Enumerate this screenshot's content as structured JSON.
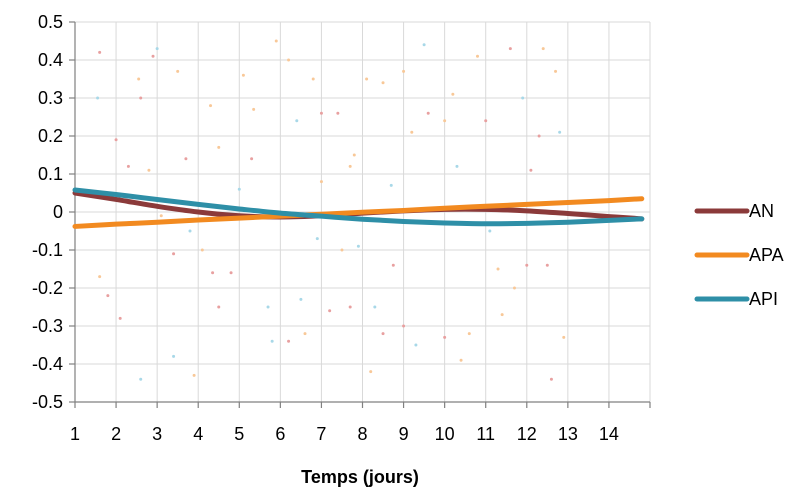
{
  "chart_data": {
    "type": "line",
    "title": "",
    "xlabel": "Temps (jours)",
    "ylabel": "",
    "xlim": [
      1,
      15
    ],
    "ylim": [
      -0.5,
      0.5
    ],
    "x_ticks": [
      1,
      2,
      3,
      4,
      5,
      6,
      7,
      8,
      9,
      10,
      11,
      12,
      13,
      14
    ],
    "y_ticks": [
      0.5,
      0.4,
      0.3,
      0.2,
      0.1,
      0,
      -0.1,
      -0.2,
      -0.3,
      -0.4,
      -0.5
    ],
    "y_tick_labels": [
      "0.5",
      "0.4",
      "0.3",
      "0.2",
      "0.1",
      "0",
      "-0.1",
      "-0.2",
      "-0.3",
      "-0.4",
      "-0.5"
    ],
    "grid": true,
    "legend_position": "right",
    "series": [
      {
        "name": "AN",
        "color": "#8B3A3A",
        "x": [
          1,
          2,
          3,
          4,
          5,
          6,
          7,
          8,
          9,
          10,
          11,
          12,
          13,
          14,
          14.8
        ],
        "values": [
          0.05,
          0.033,
          0.015,
          0.0,
          -0.01,
          -0.013,
          -0.01,
          -0.003,
          0.003,
          0.007,
          0.007,
          0.003,
          -0.004,
          -0.012,
          -0.018
        ]
      },
      {
        "name": "APA",
        "color": "#F28A20",
        "x": [
          1,
          2,
          3,
          4,
          5,
          6,
          7,
          8,
          9,
          10,
          11,
          12,
          13,
          14,
          14.8
        ],
        "values": [
          -0.038,
          -0.032,
          -0.027,
          -0.021,
          -0.016,
          -0.011,
          -0.006,
          -0.0005,
          0.004,
          0.01,
          0.015,
          0.02,
          0.025,
          0.03,
          0.035
        ]
      },
      {
        "name": "API",
        "color": "#2E8FA7",
        "x": [
          1,
          2,
          3,
          4,
          5,
          6,
          7,
          8,
          9,
          10,
          11,
          12,
          13,
          14,
          14.8
        ],
        "values": [
          0.058,
          0.046,
          0.033,
          0.02,
          0.008,
          -0.003,
          -0.011,
          -0.019,
          -0.025,
          -0.029,
          -0.031,
          -0.03,
          -0.027,
          -0.022,
          -0.018
        ]
      }
    ],
    "background_dots": [
      {
        "x": 1.6,
        "y": 0.42,
        "c": "#e8a0a0"
      },
      {
        "x": 1.55,
        "y": 0.3,
        "c": "#a8d8e8"
      },
      {
        "x": 1.8,
        "y": -0.22,
        "c": "#e8a0a0"
      },
      {
        "x": 1.6,
        "y": -0.17,
        "c": "#f8c898"
      },
      {
        "x": 2.0,
        "y": 0.19,
        "c": "#e8a0a0"
      },
      {
        "x": 2.1,
        "y": -0.28,
        "c": "#e8a0a0"
      },
      {
        "x": 2.3,
        "y": 0.12,
        "c": "#e8a0a0"
      },
      {
        "x": 2.6,
        "y": 0.3,
        "c": "#e8a0a0"
      },
      {
        "x": 2.55,
        "y": 0.35,
        "c": "#f8c898"
      },
      {
        "x": 2.6,
        "y": -0.44,
        "c": "#a8d8e8"
      },
      {
        "x": 2.8,
        "y": 0.11,
        "c": "#f8c898"
      },
      {
        "x": 2.9,
        "y": 0.41,
        "c": "#e8a0a0"
      },
      {
        "x": 3.0,
        "y": 0.43,
        "c": "#a8d8e8"
      },
      {
        "x": 3.1,
        "y": -0.01,
        "c": "#f8c898"
      },
      {
        "x": 3.4,
        "y": -0.11,
        "c": "#e8a0a0"
      },
      {
        "x": 3.5,
        "y": 0.37,
        "c": "#f8c898"
      },
      {
        "x": 3.4,
        "y": -0.38,
        "c": "#a8d8e8"
      },
      {
        "x": 3.7,
        "y": 0.14,
        "c": "#e8a0a0"
      },
      {
        "x": 3.8,
        "y": -0.05,
        "c": "#a8d8e8"
      },
      {
        "x": 3.9,
        "y": -0.43,
        "c": "#f8c898"
      },
      {
        "x": 4.1,
        "y": -0.1,
        "c": "#f8c898"
      },
      {
        "x": 4.3,
        "y": 0.28,
        "c": "#f8c898"
      },
      {
        "x": 4.35,
        "y": -0.16,
        "c": "#e8a0a0"
      },
      {
        "x": 4.5,
        "y": 0.17,
        "c": "#f8c898"
      },
      {
        "x": 4.5,
        "y": -0.25,
        "c": "#e8a0a0"
      },
      {
        "x": 4.8,
        "y": -0.16,
        "c": "#e8a0a0"
      },
      {
        "x": 5.0,
        "y": 0.06,
        "c": "#a8d8e8"
      },
      {
        "x": 5.1,
        "y": 0.36,
        "c": "#f8c898"
      },
      {
        "x": 5.3,
        "y": 0.14,
        "c": "#e8a0a0"
      },
      {
        "x": 5.35,
        "y": 0.27,
        "c": "#f8c898"
      },
      {
        "x": 5.7,
        "y": -0.25,
        "c": "#a8d8e8"
      },
      {
        "x": 5.9,
        "y": 0.45,
        "c": "#f8c898"
      },
      {
        "x": 5.8,
        "y": -0.34,
        "c": "#a8d8e8"
      },
      {
        "x": 6.2,
        "y": 0.4,
        "c": "#f8c898"
      },
      {
        "x": 6.2,
        "y": -0.34,
        "c": "#e8a0a0"
      },
      {
        "x": 6.4,
        "y": 0.24,
        "c": "#a8d8e8"
      },
      {
        "x": 6.5,
        "y": -0.23,
        "c": "#a8d8e8"
      },
      {
        "x": 6.6,
        "y": -0.32,
        "c": "#f8c898"
      },
      {
        "x": 6.8,
        "y": 0.35,
        "c": "#f8c898"
      },
      {
        "x": 6.9,
        "y": -0.07,
        "c": "#a8d8e8"
      },
      {
        "x": 7.0,
        "y": 0.26,
        "c": "#e8a0a0"
      },
      {
        "x": 7.0,
        "y": 0.08,
        "c": "#f8c898"
      },
      {
        "x": 7.2,
        "y": -0.26,
        "c": "#e8a0a0"
      },
      {
        "x": 7.4,
        "y": 0.26,
        "c": "#e8a0a0"
      },
      {
        "x": 7.5,
        "y": -0.1,
        "c": "#f8c898"
      },
      {
        "x": 7.7,
        "y": 0.12,
        "c": "#f8c898"
      },
      {
        "x": 7.7,
        "y": -0.25,
        "c": "#e8a0a0"
      },
      {
        "x": 7.8,
        "y": 0.15,
        "c": "#f8c898"
      },
      {
        "x": 7.9,
        "y": -0.09,
        "c": "#a8d8e8"
      },
      {
        "x": 8.1,
        "y": 0.35,
        "c": "#f8c898"
      },
      {
        "x": 8.2,
        "y": -0.42,
        "c": "#f8c898"
      },
      {
        "x": 8.3,
        "y": -0.25,
        "c": "#a8d8e8"
      },
      {
        "x": 8.5,
        "y": 0.34,
        "c": "#f8c898"
      },
      {
        "x": 8.5,
        "y": -0.32,
        "c": "#e8a0a0"
      },
      {
        "x": 8.7,
        "y": 0.07,
        "c": "#a8d8e8"
      },
      {
        "x": 8.75,
        "y": -0.14,
        "c": "#e8a0a0"
      },
      {
        "x": 9.0,
        "y": 0.37,
        "c": "#f8c898"
      },
      {
        "x": 9.0,
        "y": -0.3,
        "c": "#e8a0a0"
      },
      {
        "x": 9.2,
        "y": 0.21,
        "c": "#f8c898"
      },
      {
        "x": 9.3,
        "y": -0.35,
        "c": "#a8d8e8"
      },
      {
        "x": 9.5,
        "y": 0.44,
        "c": "#a8d8e8"
      },
      {
        "x": 9.6,
        "y": 0.26,
        "c": "#e8a0a0"
      },
      {
        "x": 10.0,
        "y": 0.24,
        "c": "#f8c898"
      },
      {
        "x": 10.0,
        "y": -0.33,
        "c": "#e8a0a0"
      },
      {
        "x": 10.2,
        "y": 0.31,
        "c": "#f8c898"
      },
      {
        "x": 10.3,
        "y": 0.12,
        "c": "#a8d8e8"
      },
      {
        "x": 10.4,
        "y": -0.39,
        "c": "#f8c898"
      },
      {
        "x": 10.6,
        "y": -0.32,
        "c": "#f8c898"
      },
      {
        "x": 10.8,
        "y": 0.41,
        "c": "#f8c898"
      },
      {
        "x": 11.0,
        "y": 0.24,
        "c": "#e8a0a0"
      },
      {
        "x": 11.1,
        "y": -0.05,
        "c": "#a8d8e8"
      },
      {
        "x": 11.3,
        "y": -0.15,
        "c": "#f8c898"
      },
      {
        "x": 11.4,
        "y": -0.27,
        "c": "#f8c898"
      },
      {
        "x": 11.6,
        "y": 0.43,
        "c": "#e8a0a0"
      },
      {
        "x": 11.7,
        "y": -0.2,
        "c": "#f8c898"
      },
      {
        "x": 11.9,
        "y": 0.3,
        "c": "#a8d8e8"
      },
      {
        "x": 12.0,
        "y": -0.14,
        "c": "#e8a0a0"
      },
      {
        "x": 12.1,
        "y": 0.11,
        "c": "#e8a0a0"
      },
      {
        "x": 12.3,
        "y": 0.2,
        "c": "#e8a0a0"
      },
      {
        "x": 12.4,
        "y": 0.43,
        "c": "#f8c898"
      },
      {
        "x": 12.5,
        "y": -0.14,
        "c": "#e8a0a0"
      },
      {
        "x": 12.6,
        "y": -0.44,
        "c": "#e8a0a0"
      },
      {
        "x": 12.7,
        "y": 0.37,
        "c": "#f8c898"
      },
      {
        "x": 12.8,
        "y": 0.21,
        "c": "#a8d8e8"
      },
      {
        "x": 12.9,
        "y": -0.33,
        "c": "#f8c898"
      }
    ]
  }
}
